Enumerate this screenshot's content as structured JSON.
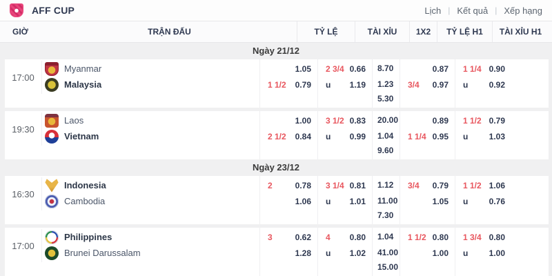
{
  "topbar": {
    "title": "AFF CUP",
    "separator": "|",
    "nav": [
      {
        "label": "Lịch"
      },
      {
        "label": "Kết quả"
      },
      {
        "label": "Xếp hạng"
      }
    ]
  },
  "columns": {
    "time": "GIỜ",
    "match": "TRẬN ĐẤU",
    "handicap": "TỶ LỆ",
    "over_under": "TÀI XỈU",
    "one_x_two": "1X2",
    "handicap_h1": "TỶ LỆ H1",
    "over_under_h1": "TÀI XỈU H1"
  },
  "colors": {
    "accent_red": "#e8565e",
    "text_dark": "#2e3850",
    "brand_pink": "#e8447a",
    "page_background": "#f0f0f1"
  },
  "groups": [
    {
      "date": "Ngày 21/12",
      "matches": [
        {
          "time": "17:00",
          "home": {
            "name": "Myanmar"
          },
          "away": {
            "name": "Malaysia"
          },
          "handicap": {
            "home_line": "",
            "home_odds": "1.05",
            "away_line": "1 1/2",
            "away_odds": "0.79"
          },
          "over_under": {
            "over_line": "2 3/4",
            "over_odds": "0.66",
            "under_line": "u",
            "under_odds": "1.19"
          },
          "one_x_two": [
            "8.70",
            "1.23",
            "5.30"
          ],
          "handicap_h1": {
            "home_line": "",
            "home_odds": "0.87",
            "away_line": "3/4",
            "away_odds": "0.97"
          },
          "over_under_h1": {
            "over_line": "1 1/4",
            "over_odds": "0.90",
            "under_line": "u",
            "under_odds": "0.92"
          }
        },
        {
          "time": "19:30",
          "home": {
            "name": "Laos"
          },
          "away": {
            "name": "Vietnam"
          },
          "handicap": {
            "home_line": "",
            "home_odds": "1.00",
            "away_line": "2 1/2",
            "away_odds": "0.84"
          },
          "over_under": {
            "over_line": "3 1/2",
            "over_odds": "0.83",
            "under_line": "u",
            "under_odds": "0.99"
          },
          "one_x_two": [
            "20.00",
            "1.04",
            "9.60"
          ],
          "handicap_h1": {
            "home_line": "",
            "home_odds": "0.89",
            "away_line": "1 1/4",
            "away_odds": "0.95"
          },
          "over_under_h1": {
            "over_line": "1 1/2",
            "over_odds": "0.79",
            "under_line": "u",
            "under_odds": "1.03"
          }
        }
      ]
    },
    {
      "date": "Ngày 23/12",
      "matches": [
        {
          "time": "16:30",
          "home": {
            "name": "Indonesia"
          },
          "away": {
            "name": "Cambodia"
          },
          "handicap": {
            "home_line": "2",
            "home_odds": "0.78",
            "away_line": "",
            "away_odds": "1.06"
          },
          "over_under": {
            "over_line": "3 1/4",
            "over_odds": "0.81",
            "under_line": "u",
            "under_odds": "1.01"
          },
          "one_x_two": [
            "1.12",
            "11.00",
            "7.30"
          ],
          "handicap_h1": {
            "home_line": "3/4",
            "home_odds": "0.79",
            "away_line": "",
            "away_odds": "1.05"
          },
          "over_under_h1": {
            "over_line": "1 1/2",
            "over_odds": "1.06",
            "under_line": "u",
            "under_odds": "0.76"
          }
        },
        {
          "time": "17:00",
          "home": {
            "name": "Philippines"
          },
          "away": {
            "name": "Brunei Darussalam"
          },
          "handicap": {
            "home_line": "3",
            "home_odds": "0.62",
            "away_line": "",
            "away_odds": "1.28"
          },
          "over_under": {
            "over_line": "4",
            "over_odds": "0.80",
            "under_line": "u",
            "under_odds": "1.02"
          },
          "one_x_two": [
            "1.04",
            "41.00",
            "15.00"
          ],
          "handicap_h1": {
            "home_line": "1 1/2",
            "home_odds": "0.80",
            "away_line": "",
            "away_odds": "1.00"
          },
          "over_under_h1": {
            "over_line": "1 3/4",
            "over_odds": "0.80",
            "under_line": "u",
            "under_odds": "1.00"
          }
        }
      ]
    }
  ]
}
